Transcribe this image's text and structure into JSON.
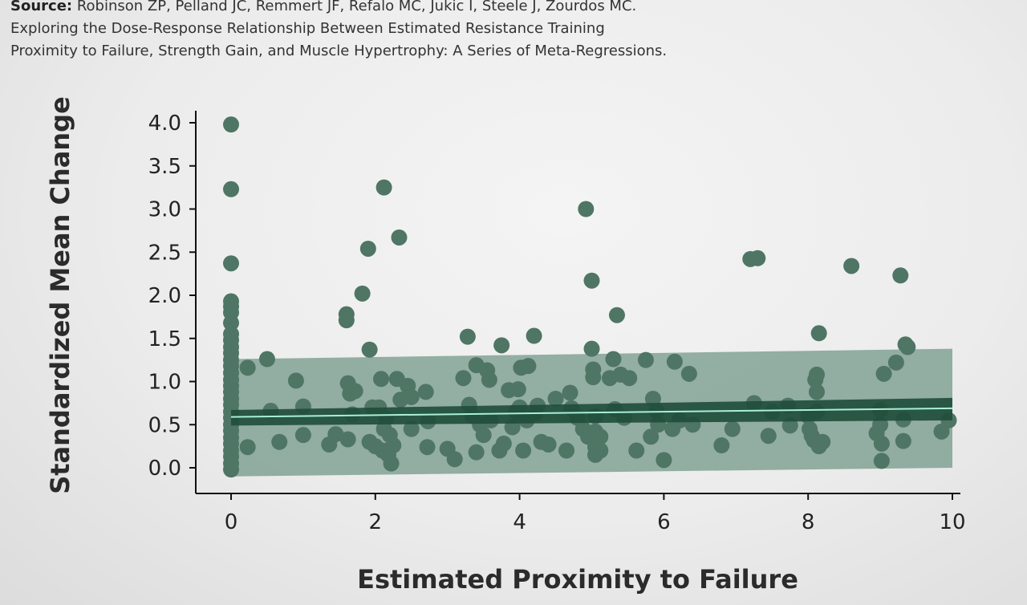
{
  "source": {
    "label": "Source:",
    "authors": "Robinson ZP, Pelland JC, Remmert JF, Refalo MC, Jukic I, Steele J, Zourdos MC.",
    "title_line1": "Exploring the Dose-Response Relationship Between Estimated Resistance Training",
    "title_line2": "Proximity to Failure, Strength Gain, and Muscle Hypertrophy: A Series of Meta-Regressions."
  },
  "colors": {
    "point": "#4f7565",
    "band": "#6f9485",
    "ci": "#1f4c3a",
    "fit_line": "#a9f0d6",
    "axis": "#111111"
  },
  "chart_data": {
    "type": "scatter",
    "title": "",
    "xlabel": "Estimated Proximity to Failure",
    "ylabel": "Standardized Mean Change",
    "xlim": [
      0,
      10
    ],
    "ylim": [
      0,
      4
    ],
    "x_ticks": [
      "0",
      "2",
      "4",
      "6",
      "8",
      "10"
    ],
    "y_ticks": [
      "0.0",
      "0.5",
      "1.0",
      "1.5",
      "2.0",
      "2.5",
      "3.0",
      "3.5",
      "4.0"
    ],
    "grid": false,
    "legend": "none",
    "regression": {
      "fit": {
        "x0": 0,
        "y0": 0.59,
        "x1": 10,
        "y1": 0.69
      },
      "ci_lower": {
        "x0": 0,
        "y0": 0.49,
        "x1": 10,
        "y1": 0.55
      },
      "ci_upper": {
        "x0": 0,
        "y0": 0.67,
        "x1": 10,
        "y1": 0.81
      },
      "pi_lower": {
        "x0": 0,
        "y0": -0.1,
        "x1": 10,
        "y1": 0.0
      },
      "pi_upper": {
        "x0": 0,
        "y0": 1.26,
        "x1": 10,
        "y1": 1.38
      }
    },
    "points": [
      [
        0.0,
        3.98
      ],
      [
        0.0,
        3.23
      ],
      [
        0.0,
        2.37
      ],
      [
        0.0,
        1.93
      ],
      [
        0.0,
        1.87
      ],
      [
        0.0,
        1.8
      ],
      [
        0.0,
        1.68
      ],
      [
        0.0,
        1.55
      ],
      [
        0.0,
        1.48
      ],
      [
        0.0,
        1.4
      ],
      [
        0.0,
        1.33
      ],
      [
        0.0,
        1.25
      ],
      [
        0.0,
        1.18
      ],
      [
        0.0,
        1.1
      ],
      [
        0.0,
        1.02
      ],
      [
        0.0,
        0.95
      ],
      [
        0.0,
        0.88
      ],
      [
        0.0,
        0.8
      ],
      [
        0.0,
        0.73
      ],
      [
        0.0,
        0.65
      ],
      [
        0.0,
        0.58
      ],
      [
        0.0,
        0.5
      ],
      [
        0.0,
        0.43
      ],
      [
        0.0,
        0.35
      ],
      [
        0.0,
        0.28
      ],
      [
        0.0,
        0.2
      ],
      [
        0.0,
        0.13
      ],
      [
        0.0,
        0.05
      ],
      [
        0.0,
        -0.02
      ],
      [
        0.23,
        1.16
      ],
      [
        0.23,
        0.24
      ],
      [
        0.55,
        0.66
      ],
      [
        0.5,
        1.26
      ],
      [
        0.67,
        0.3
      ],
      [
        0.9,
        1.01
      ],
      [
        1.0,
        0.71
      ],
      [
        1.0,
        0.38
      ],
      [
        1.36,
        0.27
      ],
      [
        1.45,
        0.39
      ],
      [
        1.6,
        1.78
      ],
      [
        1.6,
        1.71
      ],
      [
        1.62,
        0.98
      ],
      [
        1.62,
        0.33
      ],
      [
        1.65,
        0.86
      ],
      [
        1.68,
        0.62
      ],
      [
        1.72,
        0.89
      ],
      [
        1.82,
        2.02
      ],
      [
        1.9,
        2.54
      ],
      [
        1.92,
        1.37
      ],
      [
        1.92,
        0.3
      ],
      [
        1.96,
        0.7
      ],
      [
        2.0,
        0.25
      ],
      [
        2.05,
        0.7
      ],
      [
        2.08,
        1.03
      ],
      [
        2.1,
        0.2
      ],
      [
        2.12,
        3.25
      ],
      [
        2.12,
        0.45
      ],
      [
        2.15,
        0.57
      ],
      [
        2.18,
        0.15
      ],
      [
        2.2,
        0.38
      ],
      [
        2.22,
        0.05
      ],
      [
        2.25,
        0.26
      ],
      [
        2.3,
        1.03
      ],
      [
        2.33,
        2.67
      ],
      [
        2.35,
        0.79
      ],
      [
        2.45,
        0.95
      ],
      [
        2.5,
        0.82
      ],
      [
        2.5,
        0.45
      ],
      [
        2.7,
        0.88
      ],
      [
        2.72,
        0.24
      ],
      [
        2.73,
        0.54
      ],
      [
        3.0,
        0.22
      ],
      [
        3.1,
        0.1
      ],
      [
        3.22,
        1.04
      ],
      [
        3.28,
        1.52
      ],
      [
        3.3,
        0.73
      ],
      [
        3.35,
        0.6
      ],
      [
        3.4,
        1.19
      ],
      [
        3.4,
        0.18
      ],
      [
        3.45,
        0.5
      ],
      [
        3.5,
        0.38
      ],
      [
        3.55,
        1.13
      ],
      [
        3.58,
        1.02
      ],
      [
        3.6,
        0.55
      ],
      [
        3.72,
        0.2
      ],
      [
        3.75,
        1.42
      ],
      [
        3.78,
        0.28
      ],
      [
        3.85,
        0.9
      ],
      [
        3.9,
        0.47
      ],
      [
        3.95,
        0.65
      ],
      [
        3.98,
        0.91
      ],
      [
        4.0,
        0.7
      ],
      [
        4.02,
        1.16
      ],
      [
        4.05,
        0.2
      ],
      [
        4.1,
        0.55
      ],
      [
        4.12,
        1.18
      ],
      [
        4.2,
        1.53
      ],
      [
        4.22,
        0.63
      ],
      [
        4.25,
        0.72
      ],
      [
        4.3,
        0.3
      ],
      [
        4.4,
        0.27
      ],
      [
        4.5,
        0.8
      ],
      [
        4.65,
        0.2
      ],
      [
        4.7,
        0.87
      ],
      [
        4.72,
        0.69
      ],
      [
        4.8,
        0.58
      ],
      [
        4.88,
        0.45
      ],
      [
        4.92,
        3.0
      ],
      [
        4.95,
        0.36
      ],
      [
        5.0,
        2.17
      ],
      [
        5.0,
        1.38
      ],
      [
        5.02,
        1.14
      ],
      [
        5.02,
        1.05
      ],
      [
        5.05,
        0.6
      ],
      [
        5.05,
        0.42
      ],
      [
        5.05,
        0.24
      ],
      [
        5.05,
        0.15
      ],
      [
        5.12,
        0.36
      ],
      [
        5.12,
        0.2
      ],
      [
        5.25,
        1.04
      ],
      [
        5.3,
        1.26
      ],
      [
        5.32,
        0.68
      ],
      [
        5.35,
        1.77
      ],
      [
        5.4,
        1.08
      ],
      [
        5.45,
        0.58
      ],
      [
        5.52,
        1.04
      ],
      [
        5.62,
        0.2
      ],
      [
        5.75,
        1.25
      ],
      [
        5.82,
        0.36
      ],
      [
        5.85,
        0.8
      ],
      [
        5.9,
        0.66
      ],
      [
        5.92,
        0.5
      ],
      [
        6.0,
        0.09
      ],
      [
        6.12,
        0.45
      ],
      [
        6.15,
        1.23
      ],
      [
        6.22,
        0.55
      ],
      [
        6.35,
        1.09
      ],
      [
        6.4,
        0.5
      ],
      [
        6.8,
        0.26
      ],
      [
        6.95,
        0.45
      ],
      [
        7.2,
        2.42
      ],
      [
        7.3,
        2.43
      ],
      [
        7.25,
        0.75
      ],
      [
        7.45,
        0.37
      ],
      [
        7.5,
        0.65
      ],
      [
        7.72,
        0.72
      ],
      [
        7.75,
        0.49
      ],
      [
        8.0,
        0.6
      ],
      [
        8.02,
        0.45
      ],
      [
        8.05,
        0.37
      ],
      [
        8.08,
        0.32
      ],
      [
        8.1,
        1.02
      ],
      [
        8.12,
        1.08
      ],
      [
        8.12,
        0.88
      ],
      [
        8.12,
        0.65
      ],
      [
        8.15,
        1.56
      ],
      [
        8.15,
        0.25
      ],
      [
        8.2,
        0.3
      ],
      [
        8.6,
        2.34
      ],
      [
        8.95,
        0.4
      ],
      [
        9.0,
        0.67
      ],
      [
        9.0,
        0.5
      ],
      [
        9.02,
        0.28
      ],
      [
        9.02,
        0.08
      ],
      [
        9.05,
        1.09
      ],
      [
        9.22,
        1.22
      ],
      [
        9.28,
        2.23
      ],
      [
        9.32,
        0.56
      ],
      [
        9.32,
        0.31
      ],
      [
        9.35,
        1.43
      ],
      [
        9.38,
        1.4
      ],
      [
        9.85,
        0.42
      ],
      [
        9.95,
        0.55
      ]
    ]
  }
}
